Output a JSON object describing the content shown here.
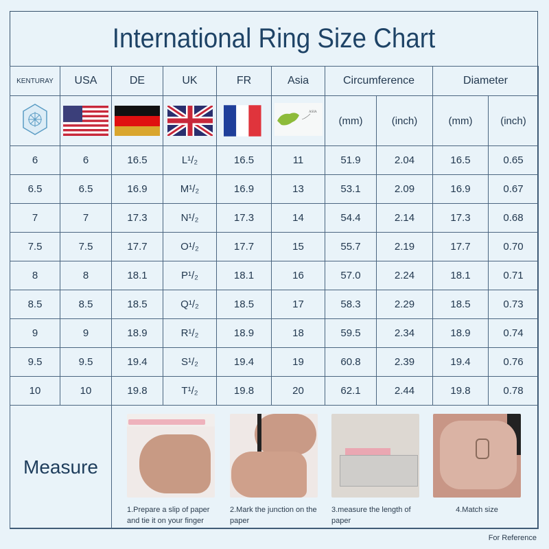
{
  "title": "International Ring Size Chart",
  "headers": {
    "brand": "KENTURAY",
    "usa": "USA",
    "de": "DE",
    "uk": "UK",
    "fr": "FR",
    "asia": "Asia",
    "circumference": "Circumference",
    "diameter": "Diameter"
  },
  "units": {
    "circ_mm": "(mm)",
    "circ_inch": "(inch)",
    "dia_mm": "(mm)",
    "dia_inch": "(inch)"
  },
  "icons": {
    "brand": "hexagon-logo-icon",
    "usa": "usa-flag-icon",
    "de": "germany-flag-icon",
    "uk": "uk-flag-icon",
    "fr": "france-flag-icon",
    "asia": "asia-map-icon"
  },
  "asia_map_label": "ASIA",
  "rows": [
    [
      "6",
      "6",
      "16.5",
      "L¹/₂",
      "16.5",
      "11",
      "51.9",
      "2.04",
      "16.5",
      "0.65"
    ],
    [
      "6.5",
      "6.5",
      "16.9",
      "M¹/₂",
      "16.9",
      "13",
      "53.1",
      "2.09",
      "16.9",
      "0.67"
    ],
    [
      "7",
      "7",
      "17.3",
      "N¹/₂",
      "17.3",
      "14",
      "54.4",
      "2.14",
      "17.3",
      "0.68"
    ],
    [
      "7.5",
      "7.5",
      "17.7",
      "O¹/₂",
      "17.7",
      "15",
      "55.7",
      "2.19",
      "17.7",
      "0.70"
    ],
    [
      "8",
      "8",
      "18.1",
      "P¹/₂",
      "18.1",
      "16",
      "57.0",
      "2.24",
      "18.1",
      "0.71"
    ],
    [
      "8.5",
      "8.5",
      "18.5",
      "Q¹/₂",
      "18.5",
      "17",
      "58.3",
      "2.29",
      "18.5",
      "0.73"
    ],
    [
      "9",
      "9",
      "18.9",
      "R¹/₂",
      "18.9",
      "18",
      "59.5",
      "2.34",
      "18.9",
      "0.74"
    ],
    [
      "9.5",
      "9.5",
      "19.4",
      "S¹/₂",
      "19.4",
      "19",
      "60.8",
      "2.39",
      "19.4",
      "0.76"
    ],
    [
      "10",
      "10",
      "19.8",
      "T¹/₂",
      "19.8",
      "20",
      "62.1",
      "2.44",
      "19.8",
      "0.78"
    ]
  ],
  "measure": {
    "label": "Measure",
    "steps": [
      {
        "caption": "1.Prepare a slip of  paper and tie it on your finger",
        "photo": "hand-with-paper-slip"
      },
      {
        "caption": "2.Mark the junction on the paper",
        "photo": "marking-paper-with-pen"
      },
      {
        "caption": "3.measure the length of paper",
        "photo": "paper-on-ruler"
      },
      {
        "caption": "4.Match size",
        "photo": "hand-wearing-ring"
      }
    ]
  },
  "footer": "For Reference",
  "colors": {
    "background": "#e9f3f9",
    "text": "#1d3550",
    "title": "#1e4366",
    "grid": "#4a6580"
  }
}
